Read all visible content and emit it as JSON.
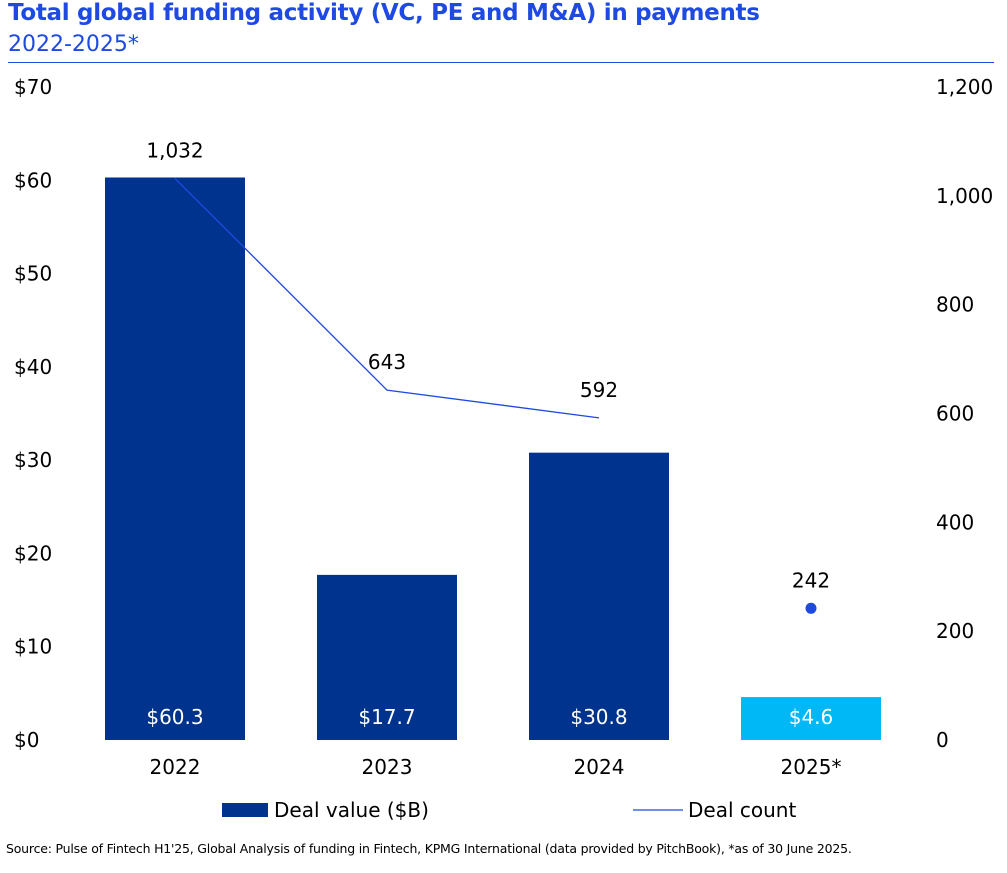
{
  "chart_data": {
    "type": "bar+line",
    "title": "Total global funding activity (VC, PE and M&A) in payments",
    "subtitle": "2022-2025*",
    "categories": [
      "2022",
      "2023",
      "2024",
      "2025*"
    ],
    "series": [
      {
        "name": "Deal value ($B)",
        "type": "bar",
        "axis": "left",
        "values": [
          60.3,
          17.7,
          30.8,
          4.6
        ],
        "value_labels": [
          "$60.3",
          "$17.7",
          "$30.8",
          "$4.6"
        ],
        "colors": [
          "#00338d",
          "#00338d",
          "#00338d",
          "#00b8f5"
        ]
      },
      {
        "name": "Deal count",
        "type": "line",
        "axis": "right",
        "values": [
          1032,
          643,
          592,
          242
        ],
        "value_labels": [
          "1,032",
          "643",
          "592",
          "242"
        ],
        "color": "#1e49e2",
        "note": ""
      }
    ],
    "left_axis": {
      "ylim": [
        0,
        70
      ],
      "ticks": [
        "$0",
        "$10",
        "$20",
        "$30",
        "$40",
        "$50",
        "$60",
        "$70"
      ]
    },
    "right_axis": {
      "ylim": [
        0,
        1200
      ],
      "ticks": [
        "0",
        "200",
        "400",
        "600",
        "800",
        "1,000",
        "1,200"
      ]
    },
    "grid": false,
    "legend": {
      "position": "bottom",
      "items": [
        "Deal value ($B)",
        "Deal count"
      ]
    }
  },
  "source": "Source: Pulse of Fintech H1'25, Global Analysis of funding in Fintech, KPMG International (data provided by PitchBook), *as of 30 June 2025."
}
